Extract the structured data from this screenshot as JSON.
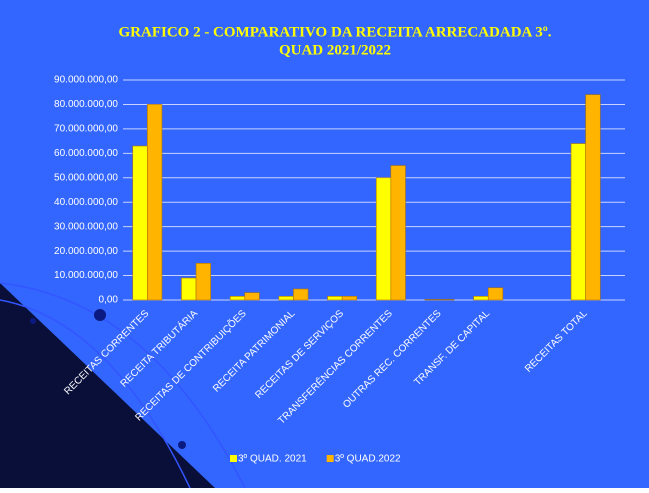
{
  "chart_data": {
    "type": "bar",
    "title": [
      "GRAFICO 2 - COMPARATIVO DA RECEITA ARRECADADA 3º.",
      "QUAD 2021/2022"
    ],
    "categories": [
      "RECEITAS CORRENTES",
      "RECEITA TRIBUTÁRIA",
      "RECEITAS DE CONTRIBUIÇÕES",
      "RECEITA PATRIMONIAL",
      "RECEITAS DE SERVIÇOS",
      "TRANSFERÊNCIAS CORRENTES",
      "OUTRAS REC. CORRENTES",
      "TRANSF. DE CAPITAL",
      null,
      "RECEITAS TOTAL"
    ],
    "series": [
      {
        "name": "3º QUAD. 2021",
        "color": "#ffff00",
        "values": [
          63000000,
          9000000,
          1500000,
          1500000,
          1500000,
          50000000,
          200000,
          1500000,
          null,
          64000000
        ]
      },
      {
        "name": "3º QUAD.2022",
        "color": "#ffb400",
        "values": [
          80000000,
          15000000,
          3000000,
          4500000,
          1500000,
          55000000,
          200000,
          5000000,
          null,
          84000000
        ]
      }
    ],
    "ylim": [
      0,
      90000000
    ],
    "yticks": [
      {
        "value": 0,
        "label": "0,00"
      },
      {
        "value": 10000000,
        "label": "10.000.000,00"
      },
      {
        "value": 20000000,
        "label": "20.000.000,00"
      },
      {
        "value": 30000000,
        "label": "30.000.000,00"
      },
      {
        "value": 40000000,
        "label": "40.000.000,00"
      },
      {
        "value": 50000000,
        "label": "50.000.000,00"
      },
      {
        "value": 60000000,
        "label": "60.000.000,00"
      },
      {
        "value": 70000000,
        "label": "70.000.000,00"
      },
      {
        "value": 80000000,
        "label": "80.000.000,00"
      },
      {
        "value": 90000000,
        "label": "90.000.000,00"
      }
    ],
    "grid": true
  }
}
